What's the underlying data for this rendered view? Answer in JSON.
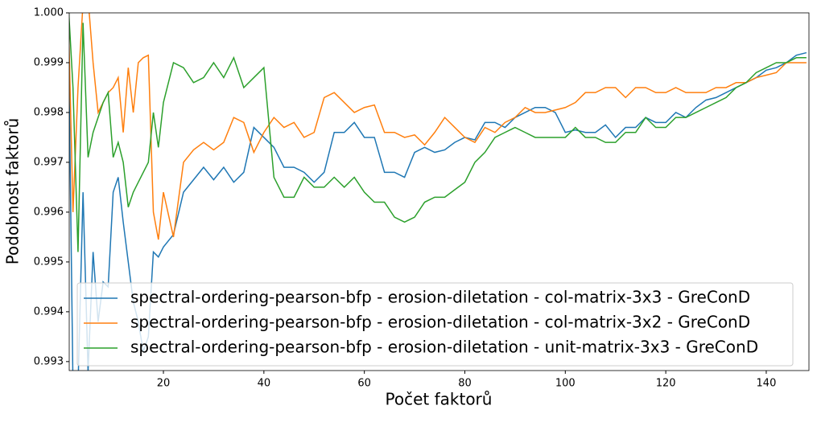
{
  "chart_data": {
    "type": "line",
    "xlabel": "Počet faktorů",
    "ylabel": "Podobnost faktorů",
    "x": [
      1,
      2,
      3,
      4,
      5,
      6,
      7,
      8,
      9,
      10,
      11,
      12,
      13,
      14,
      15,
      16,
      17,
      18,
      19,
      20,
      22,
      24,
      26,
      28,
      30,
      32,
      34,
      36,
      38,
      40,
      42,
      44,
      46,
      48,
      50,
      52,
      54,
      56,
      58,
      60,
      62,
      64,
      66,
      68,
      70,
      72,
      74,
      76,
      78,
      80,
      82,
      84,
      86,
      88,
      90,
      92,
      94,
      96,
      98,
      100,
      102,
      104,
      106,
      108,
      110,
      112,
      114,
      116,
      118,
      120,
      122,
      124,
      126,
      128,
      130,
      132,
      134,
      136,
      138,
      140,
      142,
      144,
      146,
      148
    ],
    "series": [
      {
        "name": "spectral-ordering-pearson-bfp - erosion-diletation - col-matrix-3x3 - GreConD",
        "color": "#1f77b4",
        "values": [
          1.0004,
          0.9925,
          0.9925,
          0.9964,
          0.9928,
          0.9952,
          0.9938,
          0.9946,
          0.9945,
          0.9964,
          0.9967,
          0.9958,
          0.995,
          0.9942,
          0.9938,
          0.9932,
          0.9935,
          0.9952,
          0.9951,
          0.9953,
          0.99555,
          0.9964,
          0.99665,
          0.9969,
          0.99665,
          0.9969,
          0.9966,
          0.9968,
          0.9977,
          0.9975,
          0.9973,
          0.9969,
          0.9969,
          0.9968,
          0.9966,
          0.9968,
          0.9976,
          0.9976,
          0.9978,
          0.9975,
          0.9975,
          0.9968,
          0.9968,
          0.9967,
          0.9972,
          0.9973,
          0.9972,
          0.99725,
          0.9974,
          0.9975,
          0.99745,
          0.9978,
          0.9978,
          0.9977,
          0.9979,
          0.998,
          0.9981,
          0.9981,
          0.998,
          0.9976,
          0.99765,
          0.9976,
          0.9976,
          0.99775,
          0.9975,
          0.9977,
          0.9977,
          0.9979,
          0.9978,
          0.9978,
          0.998,
          0.9979,
          0.9981,
          0.99825,
          0.9983,
          0.9984,
          0.9985,
          0.9986,
          0.9987,
          0.99885,
          0.9989,
          0.999,
          0.99915,
          0.9992
        ]
      },
      {
        "name": "spectral-ordering-pearson-bfp - erosion-diletation - col-matrix-3x2 - GreConD",
        "color": "#ff7f0e",
        "values": [
          1.0003,
          0.996,
          0.9985,
          1.0002,
          1.0003,
          0.999,
          0.998,
          0.9982,
          0.9984,
          0.9985,
          0.9987,
          0.9976,
          0.9989,
          0.998,
          0.999,
          0.9991,
          0.99915,
          0.996,
          0.99545,
          0.9964,
          0.9955,
          0.997,
          0.99725,
          0.9974,
          0.99725,
          0.9974,
          0.9979,
          0.9978,
          0.9972,
          0.9976,
          0.9979,
          0.9977,
          0.9978,
          0.9975,
          0.9976,
          0.9983,
          0.9984,
          0.9982,
          0.998,
          0.9981,
          0.99815,
          0.9976,
          0.9976,
          0.9975,
          0.99755,
          0.99735,
          0.9976,
          0.9979,
          0.9977,
          0.9975,
          0.9974,
          0.9977,
          0.9976,
          0.9978,
          0.9979,
          0.9981,
          0.998,
          0.998,
          0.99805,
          0.9981,
          0.9982,
          0.9984,
          0.9984,
          0.9985,
          0.9985,
          0.9983,
          0.9985,
          0.9985,
          0.9984,
          0.9984,
          0.9985,
          0.9984,
          0.9984,
          0.9984,
          0.9985,
          0.9985,
          0.9986,
          0.9986,
          0.9987,
          0.99875,
          0.9988,
          0.999,
          0.999,
          0.999
        ]
      },
      {
        "name": "spectral-ordering-pearson-bfp - erosion-diletation - unit-matrix-3x3 - GreConD",
        "color": "#2ca02c",
        "values": [
          1.0003,
          0.9985,
          0.9952,
          0.9998,
          0.9971,
          0.9976,
          0.9979,
          0.9982,
          0.9984,
          0.9971,
          0.9974,
          0.997,
          0.9961,
          0.9964,
          0.9966,
          0.9968,
          0.997,
          0.998,
          0.9973,
          0.9982,
          0.999,
          0.9989,
          0.9986,
          0.9987,
          0.999,
          0.9987,
          0.9991,
          0.9985,
          0.9987,
          0.9989,
          0.9967,
          0.9963,
          0.9963,
          0.9967,
          0.9965,
          0.9965,
          0.9967,
          0.9965,
          0.9967,
          0.9964,
          0.9962,
          0.9962,
          0.9959,
          0.9958,
          0.9959,
          0.9962,
          0.9963,
          0.9963,
          0.99645,
          0.9966,
          0.997,
          0.9972,
          0.9975,
          0.9976,
          0.9977,
          0.9976,
          0.9975,
          0.9975,
          0.9975,
          0.9975,
          0.9977,
          0.9975,
          0.9975,
          0.9974,
          0.9974,
          0.9976,
          0.9976,
          0.9979,
          0.9977,
          0.9977,
          0.9979,
          0.9979,
          0.998,
          0.9981,
          0.9982,
          0.9983,
          0.9985,
          0.9986,
          0.9988,
          0.9989,
          0.999,
          0.999,
          0.9991,
          0.9991
        ]
      }
    ],
    "xlim": [
      1.25,
      148.5
    ],
    "ylim": [
      0.99282,
      1.0
    ],
    "xticks": [
      20,
      40,
      60,
      80,
      100,
      120,
      140
    ],
    "yticks": [
      0.993,
      0.994,
      0.995,
      0.996,
      0.997,
      0.998,
      0.999,
      {
        "value": 1,
        "label": "1.000"
      }
    ],
    "legend": "lower left"
  }
}
